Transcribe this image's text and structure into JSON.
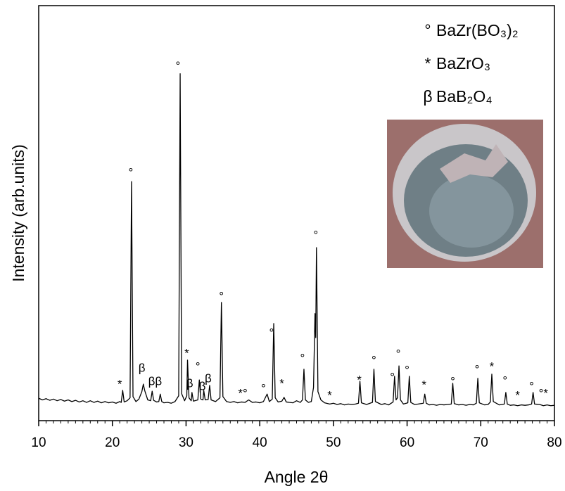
{
  "chart_data": {
    "type": "line",
    "xlabel": "Angle 2θ",
    "ylabel": "Intensity (arb.units)",
    "xlim": [
      10,
      80
    ],
    "ylim": [
      0,
      100
    ],
    "xticks": [
      10,
      20,
      30,
      40,
      50,
      60,
      70,
      80
    ],
    "xminorticks": [
      11,
      12,
      13,
      14,
      15,
      16,
      17,
      18,
      19,
      21,
      22,
      23,
      24,
      25,
      26,
      27,
      28,
      29,
      31,
      32,
      33,
      34,
      35,
      36,
      37,
      38,
      39,
      41,
      42,
      43,
      44,
      45,
      46,
      47,
      48,
      49,
      51,
      52,
      53,
      54,
      55,
      56,
      57,
      58,
      59,
      61,
      62,
      63,
      64,
      65,
      66,
      67,
      68,
      69,
      71,
      72,
      73,
      74,
      75,
      76,
      77,
      78,
      79
    ],
    "color": "#000000",
    "x": [
      10,
      10.5,
      11,
      11.5,
      12,
      12.5,
      13,
      13.5,
      14,
      14.5,
      15,
      15.5,
      16,
      16.5,
      17,
      17.5,
      18,
      18.5,
      19,
      19.5,
      20,
      20.5,
      21,
      21.2,
      21.4,
      21.6,
      22,
      22.4,
      22.6,
      22.8,
      23.2,
      23.6,
      24,
      24.2,
      24.4,
      24.8,
      25.2,
      25.4,
      25.6,
      26,
      26.3,
      26.5,
      26.7,
      27,
      27.5,
      28,
      28.5,
      29,
      29.2,
      29.4,
      29.8,
      30.1,
      30.2,
      30.4,
      30.7,
      30.8,
      31,
      31.6,
      31.8,
      32,
      32.3,
      32.4,
      32.6,
      33,
      33.2,
      33.4,
      34,
      34.6,
      34.8,
      35,
      35.5,
      36,
      36.5,
      37,
      37.5,
      38,
      38.5,
      39,
      39.5,
      40,
      40.5,
      41,
      41.3,
      41.7,
      41.9,
      42.1,
      42.5,
      43,
      43.3,
      43.6,
      44,
      44.5,
      45,
      45.5,
      45.8,
      46,
      46.2,
      46.6,
      47,
      47.3,
      47.5,
      47.6,
      47.7,
      47.9,
      48.3,
      48.8,
      49.5,
      50,
      50.5,
      51,
      51.5,
      52,
      52.5,
      53,
      53.4,
      53.6,
      53.8,
      54.5,
      55.3,
      55.5,
      55.7,
      56.5,
      57,
      57.5,
      58.1,
      58.3,
      58.5,
      58.7,
      58.9,
      59.1,
      59.5,
      60.1,
      60.3,
      60.5,
      61,
      61.5,
      62.2,
      62.4,
      62.6,
      63,
      63.5,
      64,
      64.5,
      65,
      65.5,
      66,
      66.2,
      66.4,
      67,
      67.5,
      68,
      68.5,
      69,
      69.4,
      69.6,
      69.8,
      70.5,
      71,
      71.3,
      71.5,
      71.7,
      72.5,
      73.2,
      73.4,
      73.6,
      74,
      74.5,
      75,
      75.5,
      76,
      76.5,
      76.9,
      77.1,
      77.3,
      78,
      78.5,
      79,
      79.5,
      80
    ],
    "values": [
      5.4,
      5.0,
      5.3,
      4.9,
      5.2,
      4.8,
      5.1,
      4.7,
      5.0,
      4.6,
      4.9,
      4.5,
      4.8,
      4.4,
      4.8,
      4.4,
      4.7,
      4.3,
      4.6,
      4.3,
      4.5,
      4.2,
      4.6,
      4.4,
      7.3,
      4.5,
      4.8,
      5.5,
      57.6,
      5.8,
      4.6,
      5.2,
      7.0,
      8.8,
      7.2,
      5.0,
      4.8,
      7.1,
      4.9,
      4.5,
      4.6,
      6.4,
      4.6,
      4.3,
      4.4,
      4.2,
      4.6,
      6.0,
      83.6,
      6.5,
      4.8,
      6.0,
      14.6,
      5.5,
      4.8,
      6.8,
      4.7,
      5.0,
      9.8,
      5.2,
      5.0,
      7.3,
      5.0,
      5.1,
      8.5,
      5.0,
      4.6,
      5.5,
      28.5,
      5.8,
      4.6,
      4.4,
      4.6,
      4.3,
      4.5,
      4.4,
      5.0,
      4.4,
      4.5,
      4.3,
      4.6,
      6.4,
      4.6,
      5.2,
      23.4,
      5.5,
      4.5,
      4.7,
      5.6,
      4.5,
      4.4,
      4.3,
      4.8,
      4.4,
      5.0,
      12.4,
      5.0,
      4.4,
      4.6,
      8.0,
      25.8,
      20.0,
      41.7,
      7.0,
      5.0,
      4.3,
      4.0,
      4.2,
      3.9,
      4.1,
      3.8,
      4.0,
      3.9,
      4.0,
      4.2,
      9.5,
      4.3,
      3.9,
      4.4,
      12.4,
      4.6,
      3.9,
      4.1,
      3.8,
      4.5,
      10.7,
      5.0,
      5.5,
      13.2,
      5.0,
      4.0,
      4.3,
      10.7,
      4.4,
      3.9,
      4.0,
      4.2,
      6.4,
      4.2,
      3.8,
      3.9,
      3.7,
      3.9,
      3.8,
      3.9,
      4.0,
      9.0,
      4.1,
      3.8,
      3.9,
      3.7,
      3.9,
      3.8,
      4.2,
      10.2,
      4.3,
      3.8,
      3.9,
      4.5,
      11.2,
      4.6,
      3.8,
      4.0,
      6.8,
      4.0,
      3.7,
      3.8,
      3.6,
      3.8,
      3.7,
      3.8,
      4.0,
      6.8,
      4.0,
      3.9,
      3.6,
      3.8,
      3.6,
      3.7
    ],
    "annotations": [
      {
        "text": "*",
        "x": 21.0,
        "y": 8.6
      },
      {
        "text": "°",
        "x": 22.5,
        "y": 59.7
      },
      {
        "text": "β",
        "x": 24.0,
        "y": 12.5
      },
      {
        "text": "ββ",
        "x": 25.8,
        "y": 9.3
      },
      {
        "text": "°",
        "x": 28.9,
        "y": 85.3
      },
      {
        "text": "*",
        "x": 30.1,
        "y": 16.1
      },
      {
        "text": "°",
        "x": 31.6,
        "y": 12.9
      },
      {
        "text": "β",
        "x": 30.5,
        "y": 8.8
      },
      {
        "text": "β",
        "x": 32.2,
        "y": 8.1
      },
      {
        "text": "β",
        "x": 33.0,
        "y": 10.0
      },
      {
        "text": "°",
        "x": 34.8,
        "y": 29.8
      },
      {
        "text": "*°",
        "x": 37.7,
        "y": 6.4
      },
      {
        "text": "°",
        "x": 40.5,
        "y": 7.6
      },
      {
        "text": "°",
        "x": 41.6,
        "y": 21.0
      },
      {
        "text": "*",
        "x": 43.0,
        "y": 8.8
      },
      {
        "text": "°",
        "x": 45.8,
        "y": 14.9
      },
      {
        "text": "°",
        "x": 47.6,
        "y": 44.6
      },
      {
        "text": "*",
        "x": 49.5,
        "y": 5.9
      },
      {
        "text": "*",
        "x": 53.5,
        "y": 9.7
      },
      {
        "text": "°",
        "x": 55.5,
        "y": 14.4
      },
      {
        "text": "°",
        "x": 58.0,
        "y": 10.3
      },
      {
        "text": "°",
        "x": 58.8,
        "y": 15.9
      },
      {
        "text": "°",
        "x": 60.0,
        "y": 12.0
      },
      {
        "text": "*",
        "x": 62.3,
        "y": 8.5
      },
      {
        "text": "°",
        "x": 66.2,
        "y": 9.3
      },
      {
        "text": "°",
        "x": 69.5,
        "y": 12.2
      },
      {
        "text": "*",
        "x": 71.5,
        "y": 12.9
      },
      {
        "text": "°",
        "x": 73.3,
        "y": 9.5
      },
      {
        "text": "*",
        "x": 75.0,
        "y": 5.9
      },
      {
        "text": "°",
        "x": 76.9,
        "y": 8.1
      },
      {
        "text": "°*",
        "x": 78.5,
        "y": 6.4
      }
    ],
    "legend": [
      {
        "symbol": "°",
        "label": "BaZr(BO₃)₂"
      },
      {
        "symbol": "*",
        "label": "BaZrO₃"
      },
      {
        "symbol": "β",
        "label": "BaB₂O₄"
      }
    ]
  }
}
